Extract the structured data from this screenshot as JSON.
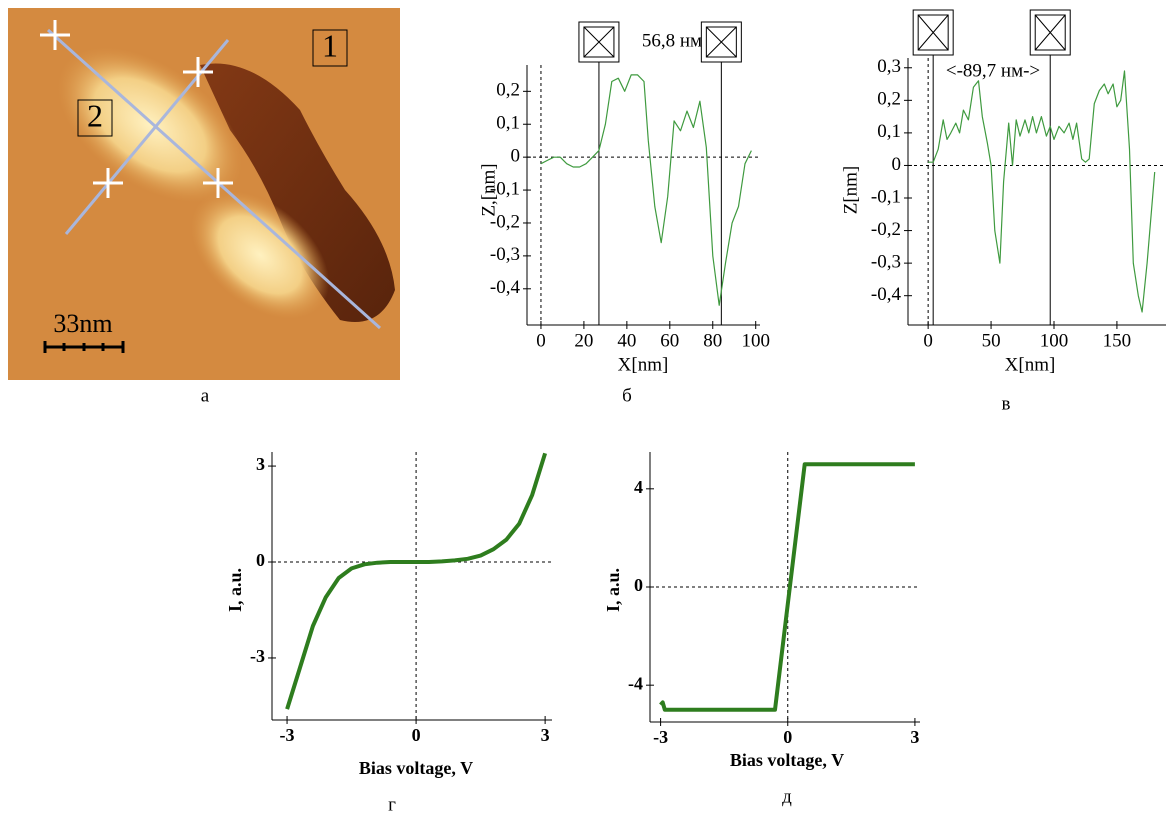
{
  "image": {
    "labels": [
      "1",
      "2"
    ],
    "scale_bar": "33nm",
    "caption": "а"
  },
  "chart_data": [
    {
      "type": "line",
      "caption": "б",
      "x_label": "X[nm]",
      "y_label": "Z,[nm]",
      "annotation": "56,8 нм",
      "marker_x": [
        27,
        84
      ],
      "zero_lines": true,
      "color": "#3f9a3f",
      "xlim": [
        -6.5,
        102
      ],
      "ylim": [
        -0.51,
        0.28
      ],
      "xticks": [
        0,
        20,
        40,
        60,
        80,
        100
      ],
      "yticks": [
        {
          "value": 0.2,
          "label": "0,2"
        },
        {
          "value": 0.1,
          "label": "0,1"
        },
        0,
        {
          "value": -0.1,
          "label": "-0,1"
        },
        {
          "value": -0.2,
          "label": "-0,2"
        },
        {
          "value": -0.3,
          "label": "-0,3"
        },
        {
          "value": -0.4,
          "label": "-0,4"
        }
      ],
      "x": [
        0,
        3,
        6,
        9,
        12,
        15,
        18,
        21,
        24,
        27,
        30,
        33,
        36,
        39,
        42,
        45,
        48,
        50,
        53,
        56,
        59,
        62,
        65,
        68,
        71,
        74,
        77,
        80,
        83,
        86,
        89,
        92,
        95,
        98
      ],
      "values": [
        -0.02,
        -0.01,
        0,
        0,
        -0.02,
        -0.03,
        -0.03,
        -0.02,
        0,
        0.02,
        0.1,
        0.23,
        0.24,
        0.2,
        0.25,
        0.25,
        0.23,
        0.05,
        -0.15,
        -0.26,
        -0.12,
        0.11,
        0.08,
        0.14,
        0.09,
        0.17,
        0.03,
        -0.3,
        -0.45,
        -0.32,
        -0.2,
        -0.15,
        -0.02,
        0.02
      ]
    },
    {
      "type": "line",
      "caption": "в",
      "x_label": "X[nm]",
      "y_label": "Z[nm]",
      "annotation": "<-89,7 нм->",
      "marker_x": [
        4,
        97
      ],
      "zero_lines": true,
      "color": "#3f9a3f",
      "xlim": [
        -16,
        189
      ],
      "ylim": [
        -0.49,
        0.33
      ],
      "xticks": [
        0,
        50,
        100,
        150
      ],
      "yticks": [
        {
          "value": 0.3,
          "label": "0,3"
        },
        {
          "value": 0.2,
          "label": "0,2"
        },
        {
          "value": 0.1,
          "label": "0,1"
        },
        0,
        {
          "value": -0.1,
          "label": "-0,1"
        },
        {
          "value": -0.2,
          "label": "-0,2"
        },
        {
          "value": -0.3,
          "label": "-0,3"
        },
        {
          "value": -0.4,
          "label": "-0,4"
        }
      ],
      "x": [
        0,
        4,
        8,
        12,
        15,
        18,
        22,
        25,
        28,
        32,
        36,
        40,
        43,
        47,
        50,
        53,
        57,
        60,
        64,
        67,
        70,
        73,
        77,
        80,
        83,
        86,
        90,
        94,
        97,
        100,
        104,
        108,
        112,
        115,
        118,
        122,
        125,
        128,
        132,
        136,
        140,
        143,
        147,
        150,
        153,
        156,
        160,
        163,
        167,
        170,
        174,
        180
      ],
      "values": [
        0.01,
        0.01,
        0.05,
        0.14,
        0.08,
        0.1,
        0.13,
        0.1,
        0.17,
        0.14,
        0.24,
        0.26,
        0.15,
        0.07,
        0,
        -0.2,
        -0.3,
        -0.05,
        0.13,
        0,
        0.14,
        0.09,
        0.14,
        0.1,
        0.15,
        0.1,
        0.15,
        0.09,
        0.12,
        0.08,
        0.12,
        0.1,
        0.13,
        0.08,
        0.13,
        0.02,
        0.01,
        0.02,
        0.19,
        0.23,
        0.25,
        0.22,
        0.25,
        0.18,
        0.2,
        0.29,
        0.05,
        -0.3,
        -0.4,
        -0.45,
        -0.3,
        -0.02
      ]
    },
    {
      "type": "line",
      "caption": "г",
      "x_label": "Bias voltage, V",
      "y_label": "I, a.u.",
      "zero_lines": true,
      "color": "#2e7d1e",
      "xlim": [
        -3.35,
        3.16
      ],
      "ylim": [
        -4.94,
        3.44
      ],
      "xticks": [
        -3,
        0,
        3
      ],
      "yticks": [
        3,
        0,
        -3
      ],
      "x": [
        -3,
        -2.7,
        -2.4,
        -2.1,
        -1.8,
        -1.5,
        -1.2,
        -0.9,
        -0.6,
        -0.3,
        0,
        0.3,
        0.6,
        0.9,
        1.2,
        1.5,
        1.8,
        2.1,
        2.4,
        2.7,
        3
      ],
      "values": [
        -4.6,
        -3.3,
        -2,
        -1.1,
        -0.5,
        -0.2,
        -0.07,
        -0.02,
        0,
        0,
        0,
        0,
        0.02,
        0.05,
        0.1,
        0.2,
        0.4,
        0.7,
        1.2,
        2.1,
        3.4
      ]
    },
    {
      "type": "line",
      "caption": "д",
      "x_label": "Bias voltage, V",
      "y_label": "I, a.u.",
      "zero_lines": true,
      "color": "#2e7d1e",
      "xlim": [
        -3.25,
        3.12
      ],
      "ylim": [
        -5.5,
        5.5
      ],
      "xticks": [
        -3,
        0,
        3
      ],
      "yticks": [
        4,
        0,
        -4
      ],
      "x": [
        -3,
        -2.95,
        -2.9,
        -0.3,
        0.4,
        3
      ],
      "values": [
        -4.8,
        -4.7,
        -5,
        -5,
        5,
        5
      ]
    }
  ]
}
